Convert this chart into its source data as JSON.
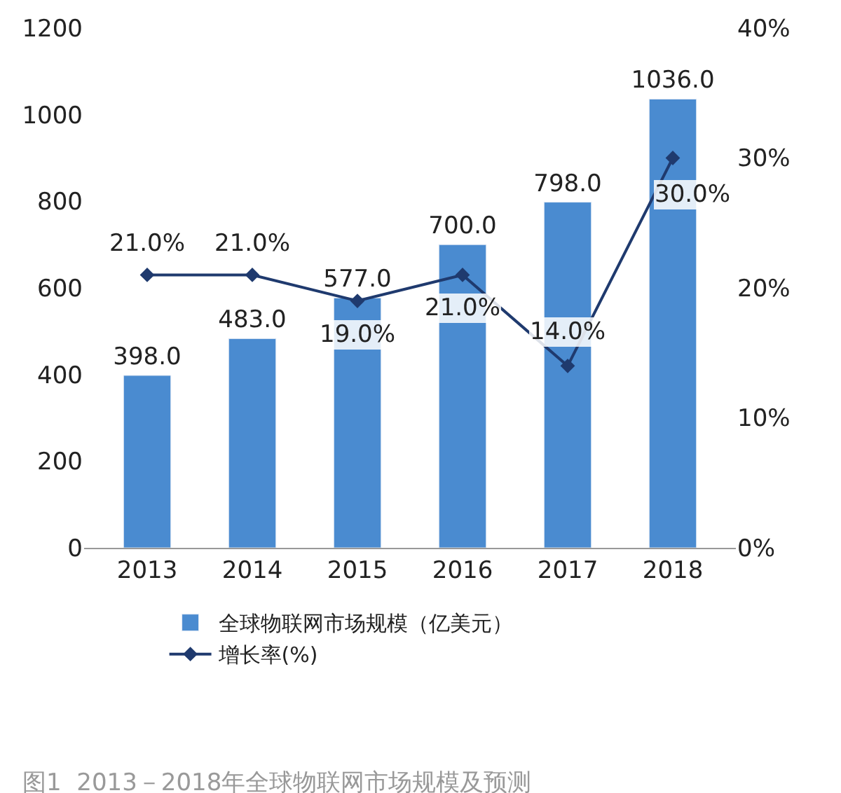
{
  "chart_data": {
    "type": "bar",
    "categories": [
      "2013",
      "2014",
      "2015",
      "2016",
      "2017",
      "2018"
    ],
    "series": [
      {
        "name": "全球物联网市场规模（亿美元）",
        "color": "#4a8bd0",
        "values": [
          398,
          483,
          577,
          700,
          798,
          1036
        ],
        "value_labels": [
          "398.0",
          "483.0",
          "577.0",
          "700.0",
          "798.0",
          "1036.0"
        ]
      },
      {
        "name": "增长率(%)",
        "type": "line",
        "axis": "y2",
        "color": "#1f3a6e",
        "marker": "diamond",
        "values": [
          21,
          21,
          19,
          21,
          14,
          30
        ],
        "value_labels": [
          "21.0%",
          "21.0%",
          "19.0%",
          "21.0%",
          "14.0%",
          "30.0%"
        ]
      }
    ],
    "ylim": [
      0,
      1200
    ],
    "yticks": [
      0,
      200,
      400,
      600,
      800,
      1000,
      1200
    ],
    "y2lim": [
      0,
      40
    ],
    "y2ticks": [
      {
        "value": 0,
        "label": "0%"
      },
      {
        "value": 10,
        "label": "10%"
      },
      {
        "value": 20,
        "label": "20%"
      },
      {
        "value": 30,
        "label": "30%"
      },
      {
        "value": 40,
        "label": "40%"
      }
    ],
    "legend": "bottom",
    "annotations": [
      "图1  2013－2018年全球物联网市场规模及预测"
    ]
  }
}
